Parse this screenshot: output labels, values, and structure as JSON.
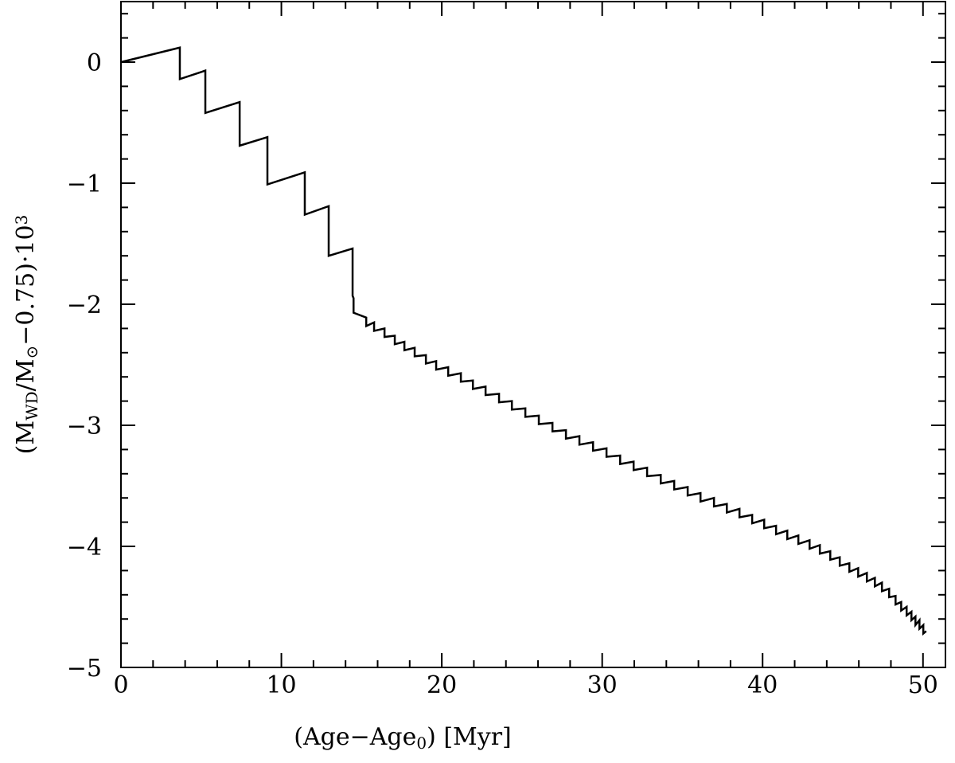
{
  "chart_data": {
    "type": "line",
    "xlabel": [
      {
        "text": "(Age−Age"
      },
      {
        "text": "0",
        "sub": true
      },
      {
        "text": ") [Myr]"
      }
    ],
    "ylabel": [
      {
        "text": "(M"
      },
      {
        "text": "WD",
        "sub": true
      },
      {
        "text": "/M"
      },
      {
        "text": "⊙",
        "sub": true
      },
      {
        "text": "−0.75)·10"
      },
      {
        "text": "3",
        "sup": true
      }
    ],
    "xlim": [
      0,
      51.4
    ],
    "ylim": [
      -5,
      0.5
    ],
    "xticks": [
      0,
      10,
      20,
      30,
      40,
      50
    ],
    "yticks": [
      {
        "value": -5,
        "label": "−5"
      },
      {
        "value": -4,
        "label": "−4"
      },
      {
        "value": -3,
        "label": "−3"
      },
      {
        "value": -2,
        "label": "−2"
      },
      {
        "value": -1,
        "label": "−1"
      },
      0
    ],
    "xminorticks": [
      2,
      4,
      6,
      8,
      12,
      14,
      16,
      18,
      22,
      24,
      26,
      28,
      32,
      34,
      36,
      38,
      42,
      44,
      46,
      48
    ],
    "yminorticks": [
      0.4,
      0.2,
      -0.2,
      -0.4,
      -0.6,
      -0.8,
      -1.2,
      -1.4,
      -1.6,
      -1.8,
      -2.2,
      -2.4,
      -2.6,
      -2.8,
      -3.2,
      -3.4,
      -3.6,
      -3.8,
      -4.2,
      -4.4,
      -4.6,
      -4.8
    ],
    "series": [
      {
        "color": "#000000",
        "x": [
          0,
          3.67,
          3.67,
          5.26,
          5.26,
          7.4,
          7.4,
          9.13,
          9.13,
          11.46,
          11.46,
          12.95,
          12.95,
          14.44,
          14.44,
          14.5,
          14.5,
          15.29,
          15.29,
          15.78,
          15.78,
          16.43,
          16.43,
          17.07,
          17.07,
          17.67,
          17.67,
          18.31,
          18.31,
          19.01,
          19.01,
          19.65,
          19.65,
          20.4,
          20.4,
          21.19,
          21.19,
          21.94,
          21.94,
          22.73,
          22.73,
          23.57,
          23.57,
          24.37,
          24.37,
          25.21,
          25.21,
          26.05,
          26.05,
          26.9,
          26.9,
          27.74,
          27.74,
          28.58,
          28.58,
          29.43,
          29.43,
          30.27,
          30.27,
          31.12,
          31.12,
          31.96,
          31.96,
          32.8,
          32.8,
          33.65,
          33.65,
          34.49,
          34.49,
          35.33,
          35.33,
          36.13,
          36.13,
          36.97,
          36.97,
          37.77,
          37.77,
          38.56,
          38.56,
          39.35,
          39.35,
          40.1,
          40.1,
          40.84,
          40.84,
          41.54,
          41.54,
          42.23,
          42.23,
          42.93,
          42.93,
          43.57,
          43.57,
          44.22,
          44.22,
          44.81,
          44.81,
          45.41,
          45.41,
          45.96,
          45.96,
          46.5,
          46.5,
          47.0,
          47.0,
          47.44,
          47.44,
          47.89,
          47.89,
          48.29,
          48.29,
          48.64,
          48.64,
          48.98,
          48.98,
          49.28,
          49.28,
          49.53,
          49.53,
          49.78,
          49.78,
          50.02,
          50.02,
          50.2
        ],
        "values": [
          0,
          0.12,
          -0.14,
          -0.07,
          -0.42,
          -0.33,
          -0.69,
          -0.62,
          -1.01,
          -0.91,
          -1.26,
          -1.19,
          -1.6,
          -1.54,
          -1.93,
          -1.95,
          -2.07,
          -2.11,
          -2.18,
          -2.15,
          -2.22,
          -2.2,
          -2.27,
          -2.26,
          -2.33,
          -2.31,
          -2.38,
          -2.36,
          -2.43,
          -2.42,
          -2.49,
          -2.47,
          -2.54,
          -2.52,
          -2.59,
          -2.57,
          -2.64,
          -2.63,
          -2.7,
          -2.68,
          -2.75,
          -2.74,
          -2.81,
          -2.8,
          -2.87,
          -2.86,
          -2.93,
          -2.92,
          -2.99,
          -2.98,
          -3.05,
          -3.04,
          -3.11,
          -3.09,
          -3.16,
          -3.14,
          -3.21,
          -3.19,
          -3.26,
          -3.25,
          -3.32,
          -3.3,
          -3.37,
          -3.35,
          -3.42,
          -3.41,
          -3.48,
          -3.46,
          -3.53,
          -3.51,
          -3.58,
          -3.56,
          -3.63,
          -3.6,
          -3.67,
          -3.65,
          -3.72,
          -3.69,
          -3.76,
          -3.74,
          -3.81,
          -3.78,
          -3.85,
          -3.83,
          -3.9,
          -3.87,
          -3.94,
          -3.91,
          -3.98,
          -3.95,
          -4.02,
          -3.99,
          -4.06,
          -4.04,
          -4.11,
          -4.09,
          -4.16,
          -4.14,
          -4.21,
          -4.18,
          -4.25,
          -4.22,
          -4.29,
          -4.26,
          -4.33,
          -4.3,
          -4.37,
          -4.35,
          -4.42,
          -4.41,
          -4.48,
          -4.46,
          -4.53,
          -4.5,
          -4.57,
          -4.54,
          -4.61,
          -4.58,
          -4.65,
          -4.61,
          -4.68,
          -4.65,
          -4.72,
          -4.7
        ]
      }
    ]
  }
}
